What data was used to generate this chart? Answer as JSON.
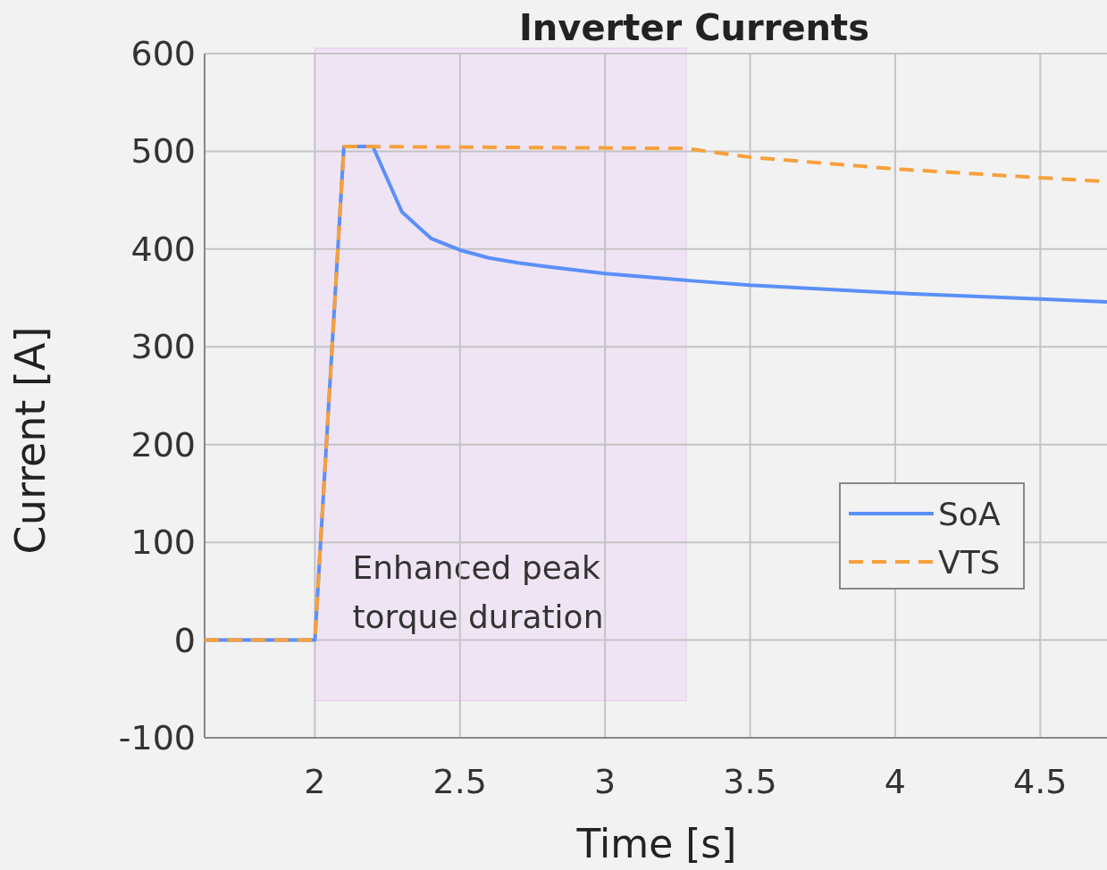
{
  "chart_data": {
    "type": "line",
    "title": "Inverter Currents",
    "xlabel": "Time [s]",
    "ylabel": "Current [A]",
    "xlim": [
      1.62,
      4.73
    ],
    "xticks": [
      2,
      2.5,
      3,
      3.5,
      4,
      4.5
    ],
    "ylim": [
      -100,
      600
    ],
    "yticks": [
      -100,
      0,
      100,
      200,
      300,
      400,
      500,
      600
    ],
    "grid": true,
    "legend": "bottom right",
    "bands": [
      {
        "axis": "x",
        "from": 2,
        "to": 3.28,
        "label": "Enhanced peak torque duration",
        "color": "#efe4f4"
      }
    ],
    "series": [
      {
        "name": "SoA",
        "color": "#5b8ff9",
        "line_style": "solid",
        "x": [
          1.62,
          2,
          2.1,
          2.2,
          2.3,
          2.4,
          2.5,
          2.6,
          2.7,
          2.8,
          3,
          3.28,
          3.5,
          4,
          4.5,
          4.73
        ],
        "values": [
          0,
          0,
          505,
          505,
          438,
          411,
          399,
          391,
          386,
          382,
          375,
          368,
          363,
          355,
          349,
          346
        ]
      },
      {
        "name": "VTS",
        "color": "#f7a03c",
        "line_style": "dashed",
        "x": [
          1.62,
          2,
          2.1,
          3.28,
          3.5,
          4,
          4.5,
          4.73
        ],
        "values": [
          0,
          0,
          505,
          503,
          494,
          482,
          473,
          469
        ]
      }
    ]
  }
}
